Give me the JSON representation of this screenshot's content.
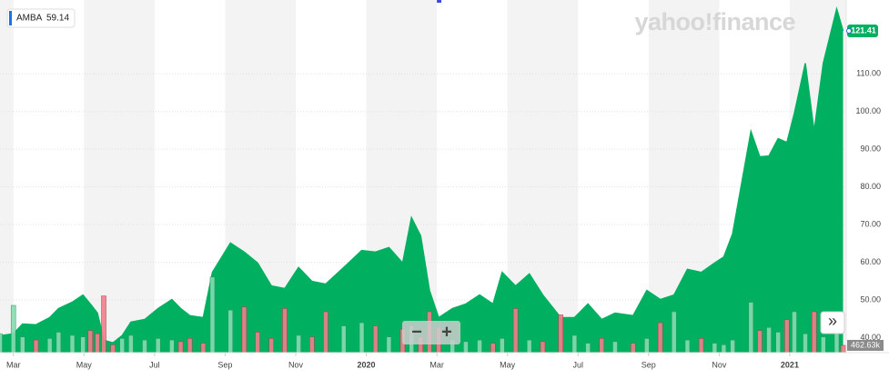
{
  "brand": "yahoo!finance",
  "legend_value": 59.14,
  "controls": {
    "zoom_out": "−",
    "zoom_in": "+",
    "expand": "»"
  },
  "chart_data": {
    "type": "area",
    "series": [
      {
        "name": "AMBA",
        "color": "#00b061",
        "x": [
          1.62,
          2.0,
          2.26,
          2.64,
          3.03,
          3.28,
          3.67,
          3.97,
          4.18,
          4.38,
          4.56,
          4.82,
          5.08,
          5.33,
          5.72,
          6.1,
          6.49,
          6.74,
          7.0,
          7.38,
          7.64,
          8.15,
          8.54,
          8.92,
          9.31,
          9.69,
          10.08,
          10.46,
          10.85,
          11.36,
          11.87,
          12.26,
          12.64,
          13.03,
          13.28,
          13.54,
          13.79,
          14.05,
          14.44,
          14.82,
          15.21,
          15.59,
          15.85,
          16.23,
          16.62,
          17.0,
          17.51,
          17.9,
          18.28,
          18.67,
          19.05,
          19.56,
          19.95,
          20.33,
          20.72,
          21.1,
          21.49,
          21.87,
          22.13,
          22.38,
          22.9,
          23.15,
          23.41,
          23.67,
          23.92,
          24.13,
          24.44,
          24.69,
          24.95,
          25.33,
          25.51
        ],
        "values": [
          40.5,
          41.0,
          43.6,
          43.4,
          45.3,
          47.7,
          49.4,
          51.3,
          48.9,
          46.5,
          39.3,
          38.6,
          40.5,
          44.1,
          44.8,
          47.7,
          50.1,
          47.7,
          45.8,
          45.3,
          57.3,
          65.1,
          62.7,
          59.8,
          53.7,
          53.0,
          58.6,
          54.9,
          54.2,
          58.6,
          63.1,
          62.7,
          63.9,
          59.8,
          71.8,
          67.0,
          52.5,
          45.3,
          47.7,
          48.9,
          51.3,
          48.9,
          57.3,
          53.7,
          56.9,
          51.3,
          45.3,
          45.3,
          48.9,
          44.8,
          46.5,
          45.8,
          52.5,
          50.1,
          51.3,
          58.1,
          57.3,
          59.8,
          61.4,
          67.5,
          94.7,
          88.0,
          88.2,
          92.8,
          91.8,
          99.5,
          112.8,
          94.7,
          112.8,
          127.2,
          121.41
        ]
      }
    ],
    "volume": {
      "color_up": "#86dbb0",
      "color_down": "#f0808c",
      "values": [
        1200000,
        3000000,
        1000000,
        800000,
        900000,
        1300000,
        1100000,
        1000000,
        1400000,
        1200000,
        3600000,
        500000,
        900000,
        1100000,
        800000,
        900000,
        800000,
        700000,
        900000,
        600000,
        4800000,
        2700000,
        2900000,
        1300000,
        900000,
        2800000,
        1100000,
        1000000,
        2600000,
        1700000,
        1900000,
        1700000,
        1000000,
        1500000,
        1700000,
        1000000,
        2600000,
        1600000,
        800000,
        700000,
        800000,
        600000,
        900000,
        2800000,
        800000,
        700000,
        2400000,
        1100000,
        600000,
        900000,
        700000,
        600000,
        900000,
        1900000,
        2600000,
        800000,
        900000,
        600000,
        500000,
        800000,
        3200000,
        1400000,
        1600000,
        1300000,
        2100000,
        2600000,
        1200000,
        2600000,
        1000000,
        2500000,
        462630
      ],
      "y2lim": [
        0,
        6000000
      ],
      "y2ticks": [
        {
          "value": 462630,
          "label": "462.63k"
        }
      ]
    },
    "xlim": [
      1.62,
      25.6
    ],
    "xticks": [
      {
        "value": 2,
        "label": "Mar"
      },
      {
        "value": 4,
        "label": "May"
      },
      {
        "value": 6,
        "label": "Jul"
      },
      {
        "value": 8,
        "label": "Sep"
      },
      {
        "value": 10,
        "label": "Nov"
      },
      {
        "value": 12,
        "label": "2020"
      },
      {
        "value": 14,
        "label": "Mar"
      },
      {
        "value": 16,
        "label": "May"
      },
      {
        "value": 18,
        "label": "Jul"
      },
      {
        "value": 20,
        "label": "Sep"
      },
      {
        "value": 22,
        "label": "Nov"
      },
      {
        "value": 24,
        "label": "2021"
      }
    ],
    "ylim": [
      36,
      129.6
    ],
    "yticks": [
      {
        "value": 40,
        "label": "40.00"
      },
      {
        "value": 50,
        "label": "50.00"
      },
      {
        "value": 60,
        "label": "60.00"
      },
      {
        "value": 70,
        "label": "70.00"
      },
      {
        "value": 80,
        "label": "80.00"
      },
      {
        "value": 90,
        "label": "90.00"
      },
      {
        "value": 100,
        "label": "100.00"
      },
      {
        "value": 110,
        "label": "110.00"
      }
    ],
    "grid": true
  }
}
